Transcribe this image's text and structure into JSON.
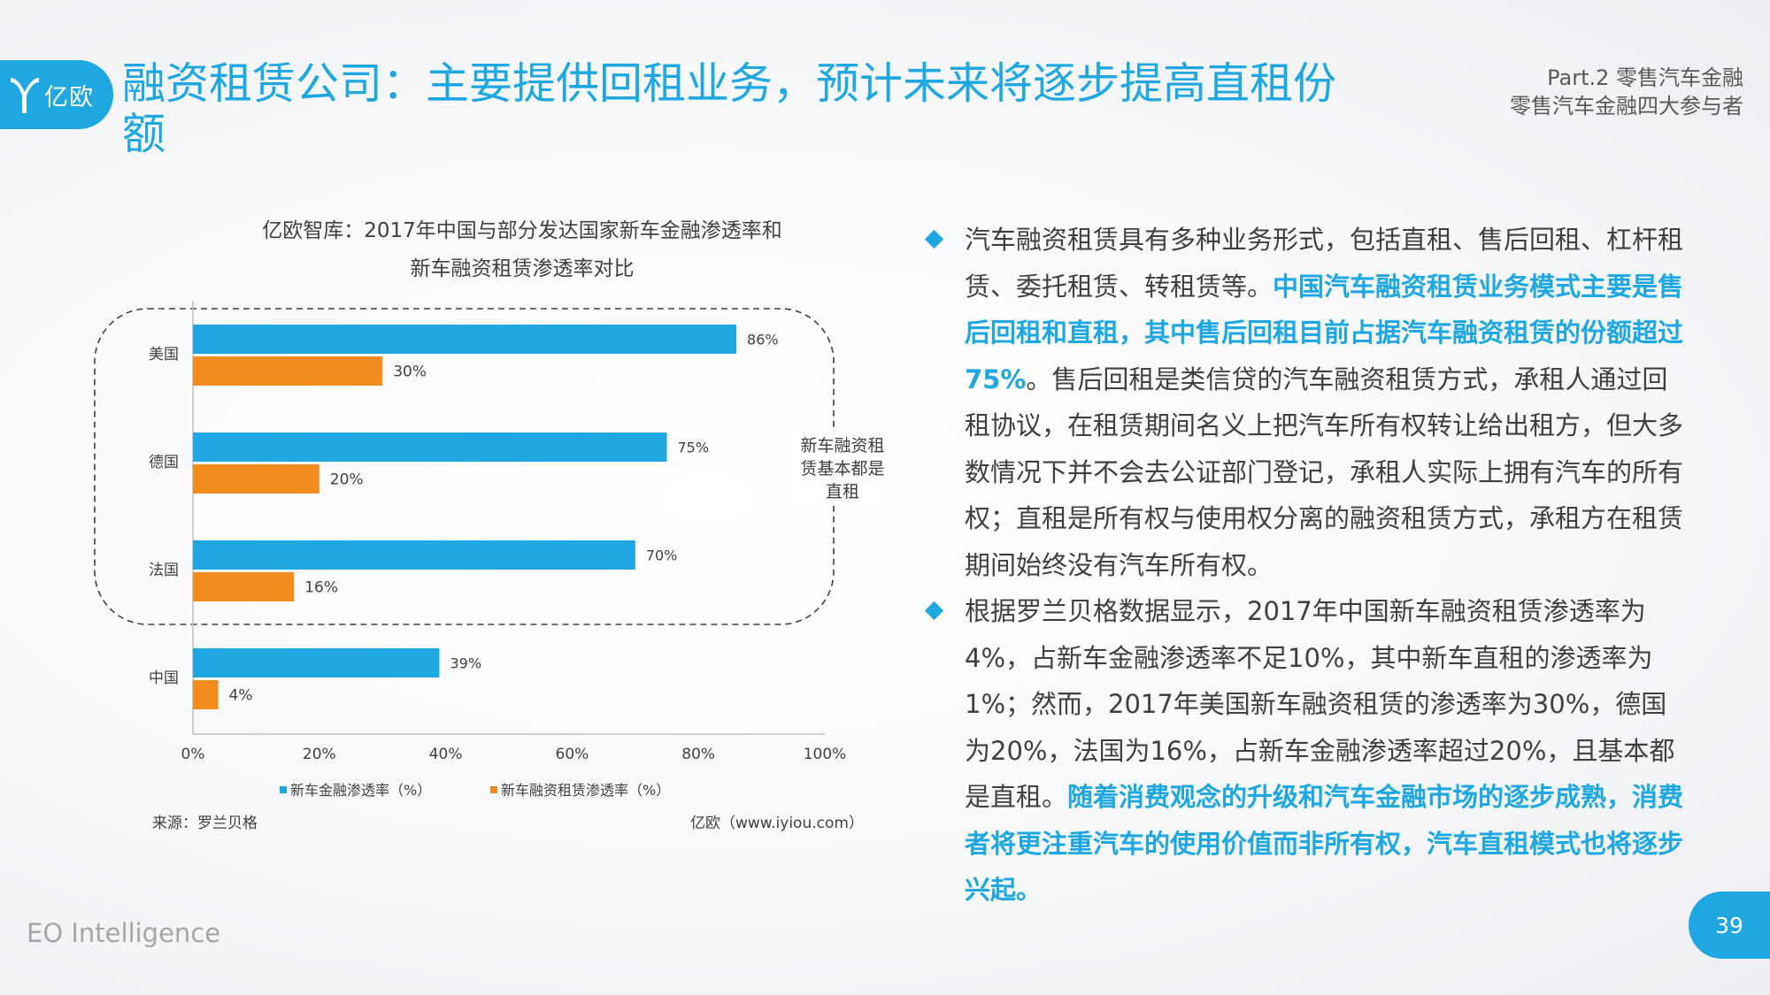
{
  "header": {
    "logo_text": "亿欧",
    "title": "融资租赁公司：主要提供回租业务，预计未来将逐步提高直租份额",
    "part_line1": "Part.2 零售汽车金融",
    "part_line2": "零售汽车金融四大参与者"
  },
  "chart_data": {
    "type": "bar",
    "orientation": "horizontal",
    "title_line1": "亿欧智库：2017年中国与部分发达国家新车金融渗透率和",
    "title_line2": "新车融资租赁渗透率对比",
    "categories": [
      "美国",
      "德国",
      "法国",
      "中国"
    ],
    "series": [
      {
        "name": "新车金融渗透率（%）",
        "values": [
          86,
          75,
          70,
          39
        ],
        "labels": [
          "86%",
          "75%",
          "70%",
          "39%"
        ],
        "color": "#1ea7e1"
      },
      {
        "name": "新车融资租赁渗透率（%）",
        "values": [
          30,
          20,
          16,
          4
        ],
        "labels": [
          "30%",
          "20%",
          "16%",
          "4%"
        ],
        "color": "#f28c1f"
      }
    ],
    "xlim": [
      0,
      100
    ],
    "x_ticks": [
      "0%",
      "20%",
      "40%",
      "60%",
      "80%",
      "100%"
    ],
    "annotation": [
      "新车融资租",
      "赁基本都是",
      "直租"
    ],
    "legend_position": "bottom",
    "grid": false
  },
  "source": "来源：罗兰贝格",
  "credit": "亿欧（www.iyiou.com）",
  "bullet1": {
    "t1": "汽车融资租赁具有多种业务形式，包括直租、售后回租、杠杆租赁、委托租赁、转租赁等。",
    "t2": "中国汽车融资租赁业务模式主要是售后回租和直租，其中售后回租目前占据汽车融资租赁的份额超过75%",
    "t3": "。售后回租是类信贷的汽车融资租赁方式，承租人通过回租协议，在租赁期间名义上把汽车所有权转让给出租方，但大多数情况下并不会去公证部门登记，承租人实际上拥有汽车的所有权；直租是所有权与使用权分离的融资租赁方式，承租方在租赁期间始终没有汽车所有权。"
  },
  "bullet2": {
    "t1": "根据罗兰贝格数据显示，2017年中国新车融资租赁渗透率为4%，占新车金融渗透率不足10%，其中新车直租的渗透率为1%；然而，2017年美国新车融资租赁的渗透率为30%，德国为20%，法国为16%，占新车金融渗透率超过20%，且基本都是直租。",
    "t2": "随着消费观念的升级和汽车金融市场的逐步成熟，消费者将更注重汽车的使用价值而非所有权，汽车直租模式也将逐步兴起。"
  },
  "footer": "EO Intelligence",
  "page_number": "39",
  "colors": {
    "accent": "#1ea7e1",
    "orange": "#f28c1f"
  }
}
